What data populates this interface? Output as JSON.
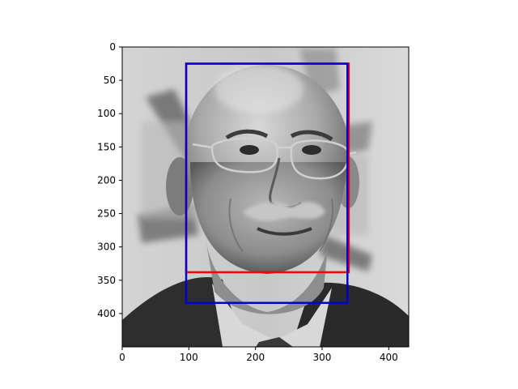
{
  "chart_data": {
    "type": "image",
    "title": "",
    "xlabel": "",
    "ylabel": "",
    "image_width": 430,
    "image_height": 450,
    "x_axis": {
      "range": [
        0,
        430
      ],
      "ticks": [
        0,
        100,
        200,
        300,
        400
      ],
      "tick_labels": [
        "0",
        "100",
        "200",
        "300",
        "400"
      ]
    },
    "y_axis": {
      "range": [
        450,
        0
      ],
      "inverted": true,
      "ticks": [
        0,
        50,
        100,
        150,
        200,
        250,
        300,
        350,
        400
      ],
      "tick_labels": [
        "0",
        "50",
        "100",
        "150",
        "200",
        "250",
        "300",
        "350",
        "400"
      ]
    },
    "image": {
      "colormap": "gray",
      "content": "face-photo"
    },
    "boxes": [
      {
        "name": "red",
        "color": "#ff0000",
        "x0": 96,
        "y0": 25,
        "x1": 340,
        "y1": 338
      },
      {
        "name": "blue",
        "color": "#0000cc",
        "x0": 96,
        "y0": 25,
        "x1": 338,
        "y1": 384
      }
    ],
    "grid": false,
    "legend": "none"
  }
}
